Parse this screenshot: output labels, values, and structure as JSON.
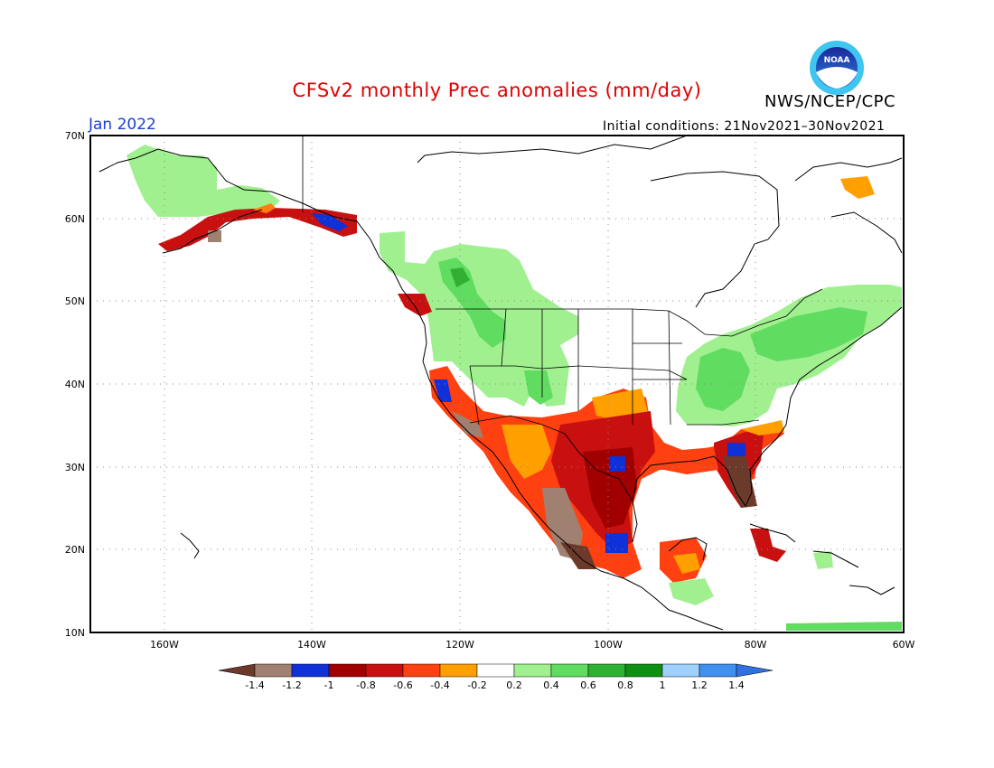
{
  "header": {
    "title": "CFSv2 monthly Prec anomalies (mm/day)",
    "month": "Jan 2022",
    "agency": "NWS/NCEP/CPC",
    "initial_conditions": "Initial conditions: 21Nov2021–30Nov2021",
    "logo_text": "NOAA"
  },
  "map": {
    "lat_labels": [
      "70N",
      "60N",
      "50N",
      "40N",
      "30N",
      "20N",
      "10N"
    ],
    "lon_labels": [
      "160W",
      "140W",
      "120W",
      "100W",
      "80W",
      "60W"
    ],
    "lat_range": [
      10,
      70
    ],
    "lon_range": [
      -172,
      -60
    ],
    "grid": true
  },
  "colorbar": {
    "labels": [
      "-1.4",
      "-1.2",
      "-1",
      "-0.8",
      "-0.6",
      "-0.4",
      "-0.2",
      "0.2",
      "0.4",
      "0.6",
      "0.8",
      "1",
      "1.2",
      "1.4"
    ],
    "colors": [
      "#6b3a2a",
      "#a08070",
      "#1030d8",
      "#a00000",
      "#c81010",
      "#ff4010",
      "#ffa000",
      "#ffffff",
      "#a0f090",
      "#60dc60",
      "#30b030",
      "#109010",
      "#a0d0ff",
      "#4090f0",
      "#3070e0"
    ]
  },
  "chart_data": {
    "type": "heatmap",
    "variable": "Prec anomalies (mm/day)",
    "x_range": [
      -172,
      -60
    ],
    "y_range": [
      10,
      70
    ],
    "regions": [
      {
        "name": "Alaska interior",
        "anomaly": 0.3
      },
      {
        "name": "Southern Alaska coast",
        "anomaly": -0.8
      },
      {
        "name": "Pacific Northwest interior",
        "anomaly": 0.5
      },
      {
        "name": "California coast",
        "anomaly": -1.0
      },
      {
        "name": "US Southwest",
        "anomaly": -0.6
      },
      {
        "name": "Texas / Southern Plains",
        "anomaly": -0.9
      },
      {
        "name": "Mexico",
        "anomaly": -1.0
      },
      {
        "name": "Florida",
        "anomaly": -1.3
      },
      {
        "name": "Ohio Valley / Northeast",
        "anomaly": 0.5
      },
      {
        "name": "Eastern Canada",
        "anomaly": 0.4
      },
      {
        "name": "Central America",
        "anomaly": -0.5
      }
    ]
  }
}
